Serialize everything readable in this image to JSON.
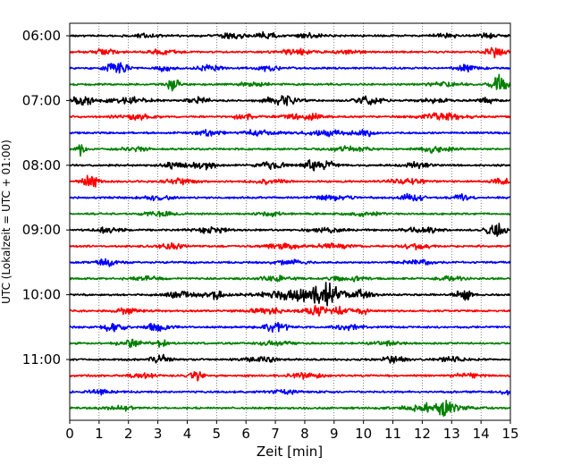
{
  "chart_data": {
    "type": "line",
    "title": "",
    "xlabel": "Zeit  [min]",
    "ylabel": "UTC (Lokalzeit = UTC + 01:00)",
    "xlim": [
      0,
      15
    ],
    "x_ticks": [
      "0",
      "1",
      "2",
      "3",
      "4",
      "5",
      "6",
      "7",
      "8",
      "9",
      "10",
      "11",
      "12",
      "13",
      "14",
      "15"
    ],
    "y_ticks": [
      {
        "row": 0,
        "label": "06:00"
      },
      {
        "row": 4,
        "label": "07:00"
      },
      {
        "row": 8,
        "label": "08:00"
      },
      {
        "row": 12,
        "label": "09:00"
      },
      {
        "row": 16,
        "label": "10:00"
      },
      {
        "row": 20,
        "label": "11:00"
      }
    ],
    "grid": "vertical dotted at each minute",
    "colors": [
      "#000000",
      "#ff0000",
      "#0000ff",
      "#008000"
    ],
    "traces": [
      {
        "start": "06:00",
        "color": "#000000",
        "events": [
          [
            2.6,
            0.25,
            2.5
          ],
          [
            5.5,
            0.35,
            3
          ],
          [
            6.7,
            0.2,
            4.5
          ],
          [
            8.2,
            0.3,
            2.5
          ],
          [
            12.8,
            0.3,
            2
          ],
          [
            14.3,
            0.3,
            2
          ]
        ]
      },
      {
        "start": "06:15",
        "color": "#ff0000",
        "events": [
          [
            1.1,
            0.3,
            3
          ],
          [
            3.2,
            0.3,
            3
          ],
          [
            7.7,
            0.4,
            2.5
          ],
          [
            9.5,
            0.3,
            2.5
          ],
          [
            14.5,
            0.25,
            5.5
          ]
        ]
      },
      {
        "start": "06:30",
        "color": "#0000ff",
        "events": [
          [
            1.6,
            0.25,
            6.5
          ],
          [
            3.2,
            0.2,
            3
          ],
          [
            4.8,
            0.3,
            3
          ],
          [
            6.8,
            0.3,
            2.5
          ],
          [
            13.5,
            0.3,
            3
          ]
        ]
      },
      {
        "start": "06:45",
        "color": "#008000",
        "events": [
          [
            3.5,
            0.15,
            6.5
          ],
          [
            6.2,
            0.4,
            2
          ],
          [
            12.8,
            0.4,
            2
          ],
          [
            14.6,
            0.18,
            10
          ]
        ]
      },
      {
        "start": "07:00",
        "color": "#000000",
        "events": [
          [
            0.4,
            0.3,
            4.5
          ],
          [
            2.0,
            0.5,
            3
          ],
          [
            4.4,
            0.3,
            3
          ],
          [
            7.2,
            0.4,
            5
          ],
          [
            10.2,
            0.3,
            4
          ],
          [
            12.5,
            0.3,
            3
          ],
          [
            14.2,
            0.2,
            3.5
          ]
        ]
      },
      {
        "start": "07:15",
        "color": "#ff0000",
        "events": [
          [
            2.2,
            0.4,
            3
          ],
          [
            6.0,
            0.3,
            2.5
          ],
          [
            8.0,
            0.5,
            3
          ],
          [
            12.7,
            0.5,
            3.5
          ]
        ]
      },
      {
        "start": "07:30",
        "color": "#0000ff",
        "events": [
          [
            4.8,
            0.3,
            2.5
          ],
          [
            6.5,
            0.4,
            3
          ],
          [
            8.6,
            0.5,
            2.8
          ],
          [
            10.0,
            0.3,
            3
          ]
        ]
      },
      {
        "start": "07:45",
        "color": "#008000",
        "events": [
          [
            0.4,
            0.1,
            6
          ],
          [
            2.2,
            0.3,
            2.5
          ],
          [
            9.5,
            0.5,
            2.5
          ],
          [
            12.5,
            0.4,
            3
          ]
        ]
      },
      {
        "start": "08:00",
        "color": "#000000",
        "events": [
          [
            3.5,
            0.3,
            3
          ],
          [
            4.5,
            0.3,
            5
          ],
          [
            7.0,
            0.4,
            4
          ],
          [
            8.2,
            0.15,
            7
          ],
          [
            8.8,
            0.2,
            4
          ],
          [
            11.8,
            0.3,
            3
          ]
        ]
      },
      {
        "start": "08:15",
        "color": "#ff0000",
        "events": [
          [
            0.7,
            0.18,
            8
          ],
          [
            3.8,
            0.4,
            2.5
          ],
          [
            6.8,
            0.4,
            2.5
          ],
          [
            11.5,
            0.4,
            3
          ],
          [
            14.8,
            0.3,
            3
          ]
        ]
      },
      {
        "start": "08:30",
        "color": "#0000ff",
        "events": [
          [
            3.0,
            0.3,
            2.5
          ],
          [
            9.0,
            0.4,
            2.5
          ],
          [
            11.6,
            0.3,
            4
          ],
          [
            13.3,
            0.2,
            4
          ]
        ]
      },
      {
        "start": "08:45",
        "color": "#008000",
        "events": [
          [
            3.0,
            0.3,
            3.5
          ],
          [
            6.8,
            0.3,
            2
          ],
          [
            10.0,
            0.4,
            2
          ]
        ]
      },
      {
        "start": "09:00",
        "color": "#000000",
        "events": [
          [
            1.3,
            0.3,
            2.5
          ],
          [
            4.8,
            0.4,
            3
          ],
          [
            8.7,
            0.4,
            2.5
          ],
          [
            12.0,
            0.4,
            3
          ],
          [
            14.5,
            0.25,
            7
          ]
        ]
      },
      {
        "start": "09:15",
        "color": "#ff0000",
        "events": [
          [
            3.5,
            0.3,
            3
          ],
          [
            7.3,
            0.4,
            3
          ],
          [
            9.0,
            0.4,
            2.5
          ],
          [
            11.8,
            0.3,
            3
          ]
        ]
      },
      {
        "start": "09:30",
        "color": "#0000ff",
        "events": [
          [
            1.3,
            0.25,
            3.5
          ],
          [
            7.5,
            0.4,
            2.5
          ],
          [
            11.8,
            0.4,
            2.5
          ]
        ]
      },
      {
        "start": "09:45",
        "color": "#008000",
        "events": [
          [
            2.5,
            0.4,
            2
          ],
          [
            7.0,
            0.4,
            2.5
          ],
          [
            9.5,
            0.4,
            2.5
          ],
          [
            13.0,
            0.3,
            2.5
          ]
        ]
      },
      {
        "start": "10:00",
        "color": "#000000",
        "events": [
          [
            3.8,
            0.4,
            3
          ],
          [
            4.9,
            0.2,
            5
          ],
          [
            8.1,
            1.0,
            6
          ],
          [
            8.8,
            0.3,
            7
          ],
          [
            10.0,
            0.2,
            4
          ],
          [
            13.4,
            0.2,
            6
          ]
        ]
      },
      {
        "start": "10:15",
        "color": "#ff0000",
        "events": [
          [
            2.0,
            0.3,
            3
          ],
          [
            6.7,
            0.4,
            3
          ],
          [
            8.4,
            0.3,
            4.5
          ],
          [
            9.2,
            0.2,
            4
          ],
          [
            10.0,
            0.2,
            3
          ]
        ]
      },
      {
        "start": "10:30",
        "color": "#0000ff",
        "events": [
          [
            1.5,
            0.3,
            4
          ],
          [
            3.0,
            0.3,
            3.5
          ],
          [
            7.0,
            0.3,
            4.5
          ],
          [
            9.5,
            0.4,
            2.5
          ]
        ]
      },
      {
        "start": "10:45",
        "color": "#008000",
        "events": [
          [
            2.1,
            0.3,
            3.5
          ],
          [
            3.1,
            0.2,
            3
          ],
          [
            7.0,
            0.4,
            2.5
          ],
          [
            10.7,
            0.4,
            2
          ]
        ]
      },
      {
        "start": "11:00",
        "color": "#000000",
        "events": [
          [
            3.1,
            0.25,
            4
          ],
          [
            6.5,
            0.4,
            2.5
          ],
          [
            11.0,
            0.3,
            3
          ],
          [
            13.0,
            0.3,
            2.5
          ]
        ]
      },
      {
        "start": "11:15",
        "color": "#ff0000",
        "events": [
          [
            2.5,
            0.3,
            2.5
          ],
          [
            4.3,
            0.15,
            5.5
          ],
          [
            8.0,
            0.4,
            2.5
          ],
          [
            13.5,
            0.3,
            2.5
          ]
        ]
      },
      {
        "start": "11:30",
        "color": "#0000ff",
        "events": [
          [
            1.0,
            0.3,
            2.5
          ],
          [
            7.3,
            0.3,
            2.5
          ],
          [
            14.9,
            0.15,
            3.5
          ]
        ]
      },
      {
        "start": "11:45",
        "color": "#008000",
        "events": [
          [
            1.7,
            0.3,
            2.5
          ],
          [
            12.4,
            0.7,
            4.5
          ],
          [
            12.9,
            0.2,
            5
          ]
        ]
      }
    ]
  }
}
